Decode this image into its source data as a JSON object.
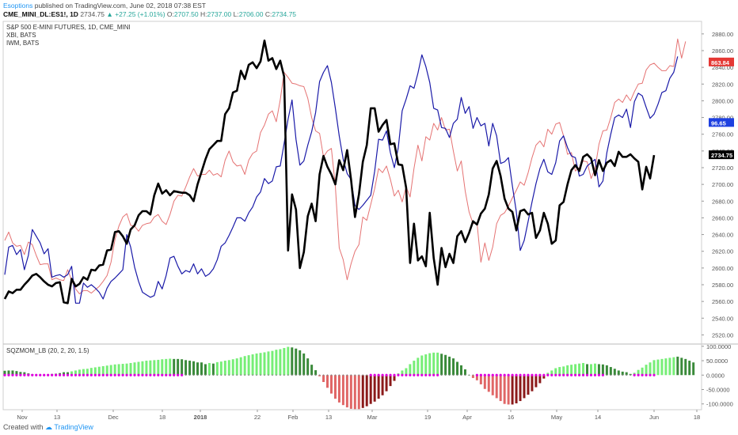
{
  "header": {
    "author": "Esoptions",
    "published": "published on TradingView.com, June 02, 2018 07:38 EST",
    "symbol": "CME_MINI_DL:ES1!, 1D",
    "last": "2734.75",
    "change": "▲ +27.25 (+1.01%)",
    "o_label": "O:",
    "o_value": "2707.50",
    "h_label": "H:",
    "h_value": "2737.00",
    "l_label": "L:",
    "l_value": "2706.00",
    "c_label": "C:",
    "c_value": "2734.75"
  },
  "footer": {
    "created_with": "Created with",
    "brand": "TradingView"
  },
  "chart_data": {
    "type": "line",
    "legend": [
      "S&P 500 E-MINI FUTURES, 1D, CME_MINI",
      "XBI, BATS",
      "IWM, BATS"
    ],
    "y_ticks": [
      "2880.00",
      "2840.00",
      "2800.00",
      "2760.00",
      "2720.00",
      "2680.00",
      "2640.00",
      "2600.00",
      "2560.00",
      "2520.00"
    ],
    "y_ticks_minor": [
      "2860.00",
      "2820.00",
      "2780.00",
      "2740.00",
      "2700.00",
      "2660.00",
      "2620.00",
      "2580.00",
      "2540.00"
    ],
    "ylim": [
      2510,
      2895
    ],
    "x_ticks": [
      "Nov",
      "13",
      "Dec",
      "18",
      "2018",
      "22",
      "Feb",
      "13",
      "Mar",
      "19",
      "Apr",
      "16",
      "May",
      "14",
      "Jun",
      "18"
    ],
    "x_ticks_bold": [
      "2018"
    ],
    "colors": {
      "es": "#000000",
      "xbi": "#1a1aa8",
      "iwm": "#e57373",
      "mom_up_strong": "#76ee76",
      "mom_up_weak": "#3a8a3a",
      "mom_dn_strong": "#e06666",
      "mom_dn_weak": "#8b1a1a",
      "zero_dot": "#e000e0"
    },
    "series": [
      {
        "name": "S&P 500 E-MINI FUTURES",
        "values": [
          2563,
          2572,
          2570,
          2574,
          2574,
          2580,
          2585,
          2591,
          2593,
          2589,
          2584,
          2580,
          2578,
          2582,
          2583,
          2559,
          2558,
          2587,
          2578,
          2581,
          2589,
          2586,
          2598,
          2597,
          2603,
          2604,
          2621,
          2622,
          2643,
          2644,
          2638,
          2629,
          2646,
          2651,
          2663,
          2668,
          2668,
          2664,
          2687,
          2701,
          2689,
          2693,
          2687,
          2692,
          2691,
          2690,
          2690,
          2687,
          2680,
          2700,
          2715,
          2730,
          2742,
          2747,
          2752,
          2752,
          2784,
          2791,
          2810,
          2812,
          2836,
          2826,
          2843,
          2846,
          2839,
          2847,
          2872,
          2848,
          2851,
          2838,
          2848,
          2829,
          2621,
          2688,
          2670,
          2600,
          2619,
          2662,
          2677,
          2656,
          2712,
          2734,
          2721,
          2712,
          2700,
          2729,
          2717,
          2741,
          2706,
          2661,
          2688,
          2727,
          2747,
          2791,
          2791,
          2763,
          2771,
          2777,
          2748,
          2749,
          2724,
          2723,
          2696,
          2606,
          2653,
          2609,
          2614,
          2602,
          2666,
          2612,
          2580,
          2624,
          2601,
          2617,
          2606,
          2638,
          2644,
          2631,
          2642,
          2656,
          2652,
          2665,
          2671,
          2688,
          2719,
          2728,
          2710,
          2683,
          2671,
          2667,
          2645,
          2668,
          2670,
          2664,
          2666,
          2636,
          2645,
          2666,
          2653,
          2629,
          2633,
          2675,
          2679,
          2700,
          2717,
          2723,
          2716,
          2733,
          2736,
          2731,
          2711,
          2729,
          2716,
          2726,
          2729,
          2722,
          2739,
          2733,
          2733,
          2736,
          2731,
          2727,
          2694,
          2721,
          2707,
          2735
        ]
      },
      {
        "name": "XBI, BATS",
        "values": [
          2592,
          2625,
          2627,
          2616,
          2622,
          2598,
          2615,
          2646,
          2638,
          2630,
          2617,
          2623,
          2589,
          2591,
          2592,
          2589,
          2592,
          2602,
          2558,
          2558,
          2582,
          2577,
          2580,
          2576,
          2571,
          2563,
          2576,
          2584,
          2588,
          2593,
          2598,
          2640,
          2625,
          2601,
          2584,
          2571,
          2568,
          2565,
          2567,
          2584,
          2575,
          2591,
          2612,
          2614,
          2602,
          2593,
          2597,
          2595,
          2605,
          2593,
          2599,
          2590,
          2593,
          2599,
          2610,
          2626,
          2630,
          2639,
          2649,
          2660,
          2660,
          2656,
          2666,
          2673,
          2685,
          2691,
          2707,
          2701,
          2704,
          2721,
          2722,
          2749,
          2778,
          2801,
          2754,
          2723,
          2728,
          2747,
          2763,
          2786,
          2823,
          2834,
          2842,
          2822,
          2791,
          2758,
          2730,
          2713,
          2706,
          2675,
          2670,
          2675,
          2681,
          2687,
          2716,
          2754,
          2753,
          2764,
          2738,
          2720,
          2744,
          2788,
          2802,
          2818,
          2815,
          2833,
          2855,
          2841,
          2822,
          2791,
          2789,
          2768,
          2767,
          2756,
          2773,
          2778,
          2804,
          2785,
          2793,
          2767,
          2780,
          2770,
          2773,
          2746,
          2773,
          2758,
          2725,
          2727,
          2732,
          2698,
          2667,
          2621,
          2633,
          2656,
          2679,
          2701,
          2719,
          2730,
          2715,
          2712,
          2726,
          2752,
          2758,
          2744,
          2734,
          2732,
          2710,
          2712,
          2722,
          2726,
          2730,
          2697,
          2704,
          2738,
          2760,
          2780,
          2783,
          2780,
          2790,
          2768,
          2799,
          2809,
          2806,
          2792,
          2779,
          2784,
          2796,
          2810,
          2812,
          2827,
          2834,
          2853
        ]
      },
      {
        "name": "IWM, BATS",
        "values": [
          2633,
          2643,
          2630,
          2626,
          2627,
          2616,
          2631,
          2628,
          2615,
          2604,
          2605,
          2605,
          2586,
          2588,
          2586,
          2585,
          2598,
          2585,
          2575,
          2569,
          2573,
          2573,
          2570,
          2574,
          2578,
          2584,
          2591,
          2607,
          2634,
          2650,
          2661,
          2665,
          2651,
          2650,
          2644,
          2651,
          2653,
          2654,
          2661,
          2664,
          2656,
          2652,
          2664,
          2680,
          2687,
          2686,
          2697,
          2709,
          2719,
          2710,
          2712,
          2712,
          2717,
          2711,
          2713,
          2709,
          2729,
          2740,
          2727,
          2722,
          2723,
          2712,
          2729,
          2737,
          2740,
          2762,
          2771,
          2784,
          2788,
          2775,
          2801,
          2834,
          2828,
          2821,
          2820,
          2818,
          2817,
          2803,
          2780,
          2764,
          2761,
          2733,
          2740,
          2743,
          2698,
          2624,
          2610,
          2586,
          2605,
          2620,
          2628,
          2661,
          2657,
          2676,
          2695,
          2719,
          2714,
          2722,
          2706,
          2686,
          2693,
          2679,
          2697,
          2685,
          2719,
          2747,
          2728,
          2757,
          2753,
          2773,
          2765,
          2780,
          2765,
          2766,
          2740,
          2716,
          2728,
          2692,
          2667,
          2653,
          2654,
          2607,
          2630,
          2609,
          2625,
          2653,
          2663,
          2666,
          2674,
          2684,
          2693,
          2703,
          2699,
          2714,
          2732,
          2747,
          2752,
          2745,
          2766,
          2760,
          2772,
          2774,
          2758,
          2736,
          2738,
          2716,
          2720,
          2728,
          2727,
          2707,
          2719,
          2748,
          2764,
          2765,
          2780,
          2798,
          2802,
          2798,
          2807,
          2800,
          2811,
          2820,
          2821,
          2837,
          2843,
          2845,
          2840,
          2836,
          2836,
          2842,
          2841,
          2874,
          2851,
          2871
        ]
      }
    ],
    "indicator": {
      "name": "SQZMOM_LB (20, 2, 20, 1.5)",
      "y_ticks": [
        "100.0000",
        "50.0000",
        "0.0000",
        "-50.0000",
        "-100.0000"
      ],
      "ylim": [
        -120,
        105
      ],
      "values": [
        15,
        16,
        16,
        14,
        11,
        10,
        6,
        3,
        2,
        0,
        0,
        2,
        4,
        5,
        7,
        10,
        10,
        13,
        16,
        19,
        21,
        22,
        25,
        27,
        29,
        31,
        33,
        35,
        37,
        38,
        39,
        40,
        42,
        44,
        46,
        48,
        50,
        51,
        52,
        53,
        55,
        56,
        57,
        56,
        56,
        55,
        52,
        50,
        48,
        44,
        44,
        38,
        42,
        40,
        45,
        47,
        50,
        52,
        55,
        58,
        62,
        66,
        69,
        72,
        75,
        77,
        79,
        82,
        84,
        88,
        90,
        94,
        98,
        96,
        92,
        86,
        75,
        58,
        36,
        17,
        -4,
        -24,
        -44,
        -64,
        -82,
        -95,
        -104,
        -112,
        -117,
        -118,
        -118,
        -114,
        -108,
        -100,
        -92,
        -82,
        -70,
        -56,
        -38,
        -20,
        6,
        16,
        24,
        38,
        50,
        60,
        68,
        72,
        76,
        78,
        78,
        74,
        70,
        64,
        58,
        46,
        34,
        20,
        0,
        -10,
        -18,
        -32,
        -48,
        -58,
        -70,
        -80,
        -90,
        -100,
        -102,
        -102,
        -98,
        -90,
        -80,
        -68,
        -56,
        -42,
        -28,
        -12,
        8,
        16,
        24,
        28,
        30,
        34,
        36,
        38,
        40,
        42,
        38,
        38,
        40,
        38,
        37,
        34,
        28,
        22,
        16,
        12,
        10,
        4,
        8,
        18,
        26,
        36,
        44,
        52,
        54,
        56,
        58,
        60,
        62,
        64,
        60,
        56,
        50,
        44
      ],
      "bar_colors": [
        "w",
        "w",
        "w",
        "w",
        "w",
        "w",
        "w",
        "w",
        "w",
        "w",
        "w",
        "w",
        "w",
        "w",
        "w",
        "w",
        "w",
        "s",
        "s",
        "s",
        "s",
        "s",
        "s",
        "s",
        "s",
        "s",
        "s",
        "s",
        "s",
        "s",
        "s",
        "s",
        "s",
        "s",
        "s",
        "s",
        "s",
        "s",
        "s",
        "s",
        "s",
        "s",
        "s",
        "w",
        "w",
        "w",
        "w",
        "w",
        "w",
        "w",
        "w",
        "w",
        "s",
        "w",
        "s",
        "s",
        "s",
        "s",
        "s",
        "s",
        "s",
        "s",
        "s",
        "s",
        "s",
        "s",
        "s",
        "s",
        "s",
        "s",
        "s",
        "s",
        "s",
        "w",
        "w",
        "w",
        "w",
        "w",
        "w",
        "w",
        "s",
        "s",
        "s",
        "s",
        "s",
        "s",
        "s",
        "s",
        "s",
        "s",
        "s",
        "w",
        "w",
        "w",
        "w",
        "w",
        "w",
        "w",
        "w",
        "w",
        "s",
        "s",
        "s",
        "s",
        "s",
        "s",
        "s",
        "s",
        "s",
        "s",
        "s",
        "w",
        "w",
        "w",
        "w",
        "w",
        "w",
        "w",
        "s",
        "s",
        "s",
        "s",
        "s",
        "s",
        "s",
        "s",
        "s",
        "s",
        "s",
        "w",
        "w",
        "w",
        "w",
        "w",
        "w",
        "w",
        "w",
        "w",
        "s",
        "s",
        "s",
        "s",
        "s",
        "s",
        "s",
        "s",
        "s",
        "s",
        "w",
        "s",
        "s",
        "w",
        "w",
        "w",
        "w",
        "w",
        "w",
        "w",
        "w",
        "w",
        "s",
        "s",
        "s",
        "s",
        "s",
        "s",
        "s",
        "s",
        "s",
        "s",
        "s",
        "w",
        "w",
        "w",
        "w",
        "w",
        "w"
      ],
      "zero_dot_range": [
        [
          0,
          45
        ],
        [
          93,
          110
        ],
        [
          120,
          152
        ],
        [
          160,
          171
        ]
      ]
    },
    "last_labels": {
      "iwm": "863.84",
      "xbi": "96.65",
      "es": "2734.75"
    }
  }
}
